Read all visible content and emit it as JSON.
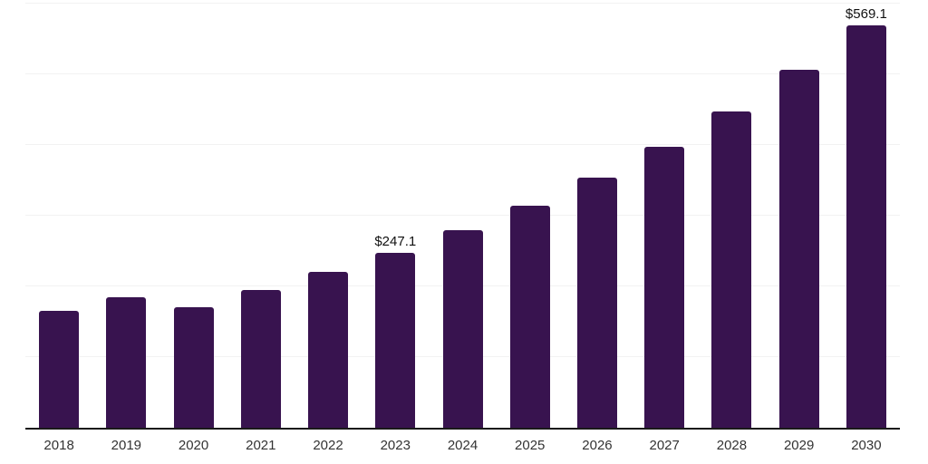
{
  "chart_data": {
    "type": "bar",
    "title": "",
    "categories": [
      "2018",
      "2019",
      "2020",
      "2021",
      "2022",
      "2023",
      "2024",
      "2025",
      "2026",
      "2027",
      "2028",
      "2029",
      "2030"
    ],
    "values": [
      166,
      184,
      171,
      195,
      221,
      247.1,
      280,
      314,
      354,
      397,
      448,
      507,
      569.1
    ],
    "data_labels": [
      "",
      "",
      "",
      "",
      "",
      "$247.1",
      "",
      "",
      "",
      "",
      "",
      "",
      "$569.1"
    ],
    "ylim": [
      0,
      600
    ],
    "gridline_step": 100,
    "grid": true,
    "legend": "none",
    "y_axis_labels_visible": false,
    "bar_color": "#38134F",
    "axis_line_color": "#1a1a1a",
    "gridline_color": "#f2f2f2",
    "tick_label_color": "#333333",
    "data_label_color": "#111111"
  }
}
